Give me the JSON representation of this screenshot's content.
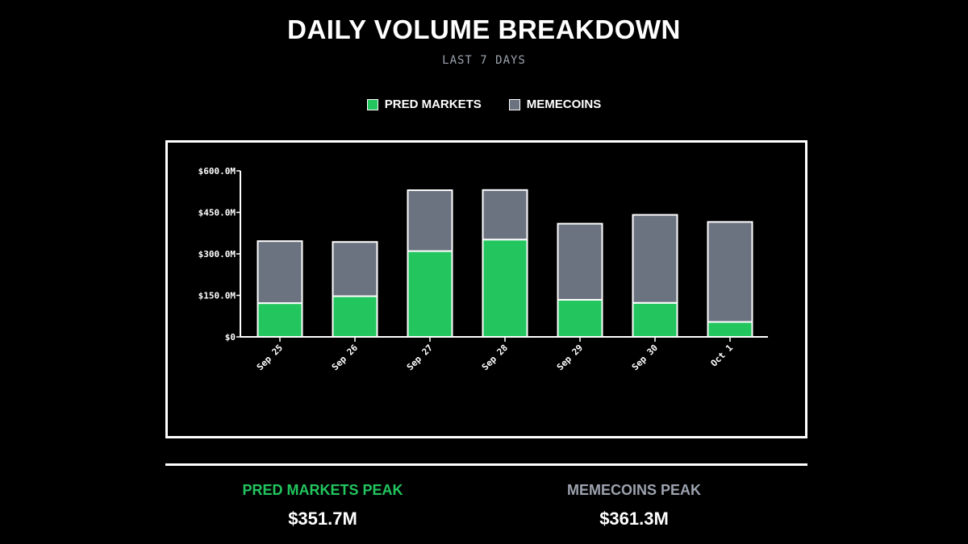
{
  "colors": {
    "pred": "#22c55e",
    "meme": "#6b7280",
    "background": "#000000"
  },
  "chart_data": {
    "type": "stacked-bar",
    "title": "DAILY VOLUME BREAKDOWN",
    "subtitle": "LAST 7 DAYS",
    "categories": [
      "Sep 25",
      "Sep 26",
      "Sep 27",
      "Sep 28",
      "Sep 29",
      "Sep 30",
      "Oct 1"
    ],
    "series": [
      {
        "name": "PRED MARKETS",
        "values": [
          122,
          147,
          310,
          351.7,
          134,
          123,
          54
        ]
      },
      {
        "name": "MEMECOINS",
        "values": [
          224,
          196,
          220,
          179,
          275,
          318,
          361.3
        ]
      }
    ],
    "ylim": [
      0,
      600
    ],
    "yticks": [
      0,
      150,
      300,
      450,
      600
    ],
    "ytick_labels": [
      "$0",
      "$150.0M",
      "$300.0M",
      "$450.0M",
      "$600.0M"
    ],
    "grid": false,
    "legend_position": "top"
  },
  "stats": {
    "pred_label": "PRED MARKETS PEAK",
    "pred_value": "$351.7M",
    "meme_label": "MEMECOINS PEAK",
    "meme_value": "$361.3M"
  }
}
